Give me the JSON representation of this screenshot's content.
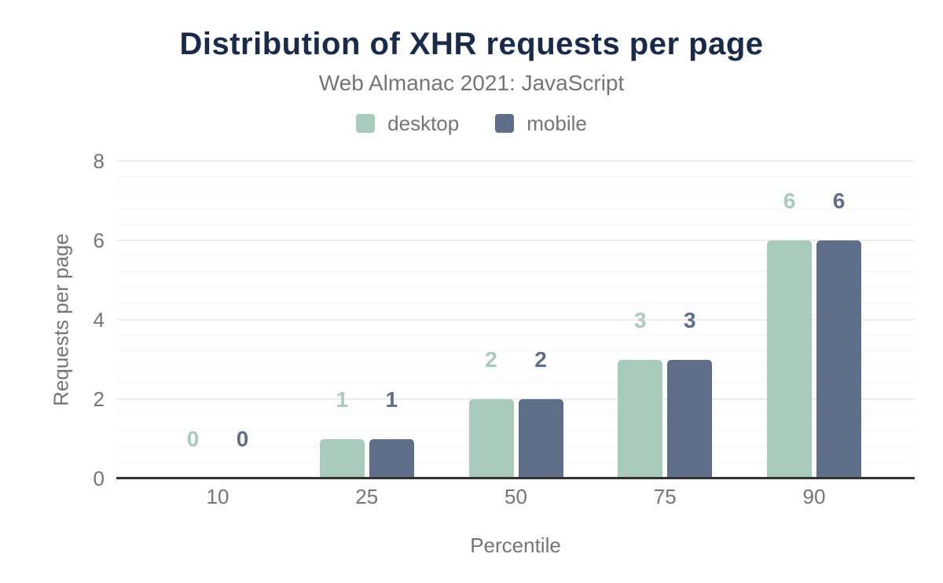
{
  "header": {
    "title": "Distribution of XHR requests per page",
    "subtitle": "Web Almanac 2021: JavaScript"
  },
  "legend": {
    "items": [
      {
        "label": "desktop",
        "color": "#a9cbbb"
      },
      {
        "label": "mobile",
        "color": "#5f6f8a"
      }
    ]
  },
  "chart_data": {
    "type": "bar",
    "title": "Distribution of XHR requests per page",
    "subtitle": "Web Almanac 2021: JavaScript",
    "categories": [
      "10",
      "25",
      "50",
      "75",
      "90"
    ],
    "series": [
      {
        "name": "desktop",
        "color": "#a9cbbb",
        "values": [
          0,
          1,
          2,
          3,
          6
        ]
      },
      {
        "name": "mobile",
        "color": "#5f6f8a",
        "values": [
          0,
          1,
          2,
          3,
          6
        ]
      }
    ],
    "xlabel": "Percentile",
    "ylabel": "Requests per page",
    "ylim": [
      0,
      8
    ],
    "yticks": [
      0,
      2,
      4,
      6,
      8
    ],
    "minor_grid_step": 0.4,
    "grid": true,
    "legend_position": "top",
    "value_labels": true
  },
  "colors": {
    "title_text": "#1a2b49",
    "muted_text": "#757575",
    "grid_major": "#ededed",
    "grid_minor": "#f6f6f6",
    "axis_line": "#333333",
    "background": "#ffffff"
  }
}
